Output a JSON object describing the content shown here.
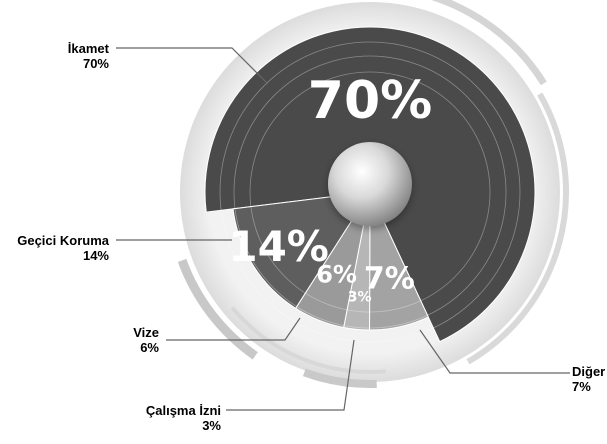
{
  "chart_data": {
    "type": "pie",
    "title": "",
    "unit": "%",
    "slices": [
      {
        "label": "İkamet",
        "value": 70,
        "display": "70%",
        "color": "#4a4a4a",
        "label_color": "#333333"
      },
      {
        "label": "Diğer",
        "value": 7,
        "display": "7%",
        "color": "#a3a3a3",
        "label_color": "#8a8a8a"
      },
      {
        "label": "Çalışma İzni",
        "value": 3,
        "display": "3%",
        "color": "#b6b6b6",
        "label_color": "#8a8a8a"
      },
      {
        "label": "Vize",
        "value": 6,
        "display": "6%",
        "color": "#9a9a9a",
        "label_color": "#555555"
      },
      {
        "label": "Geçici Koruma",
        "value": 14,
        "display": "14%",
        "color": "#5e5e5e",
        "label_color": "#333333"
      }
    ]
  }
}
